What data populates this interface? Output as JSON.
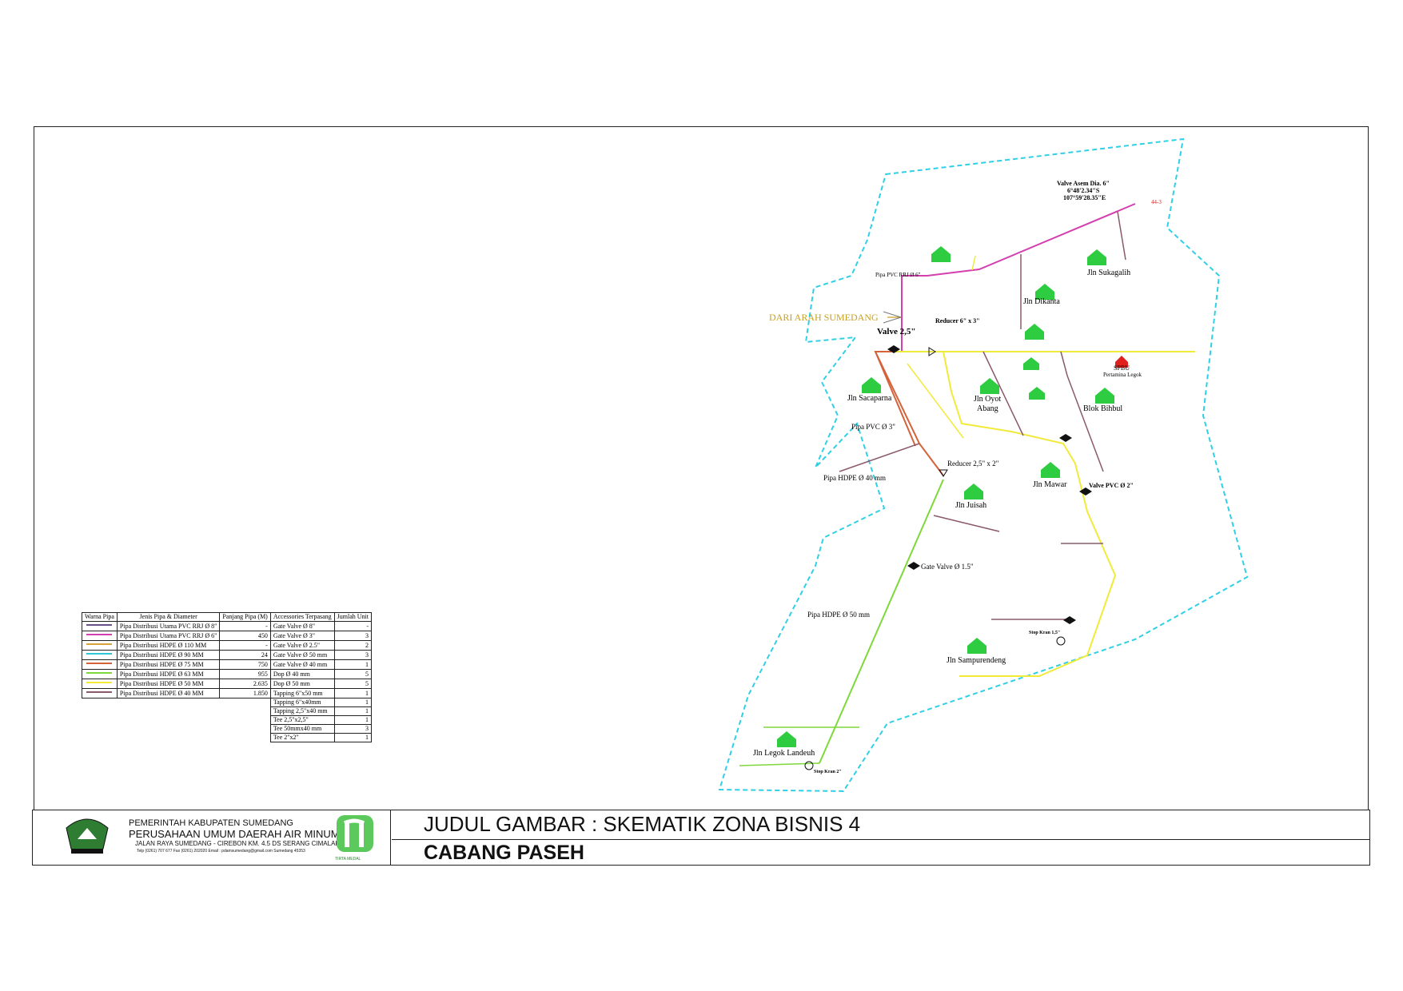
{
  "drawing": {
    "source_label": "DARI ARAH SUMEDANG",
    "valve_asem": {
      "title": "Valve Asem Dia. 6\"",
      "lat": "6°48'2.34\"S",
      "lon": "107°59'28.35\"E"
    },
    "labels": {
      "jln_sukagalih": "Jln Sukagalih",
      "jln_dikanta": "Jln Dikanta",
      "jln_sacaparna": "Jln Sacaparna",
      "jln_oyot_abang": "Jln Oyot\nAbang",
      "blok_bihbul": "Blok Bihbul",
      "jln_juisah": "Jln Juisah",
      "jln_mawar": "Jln Mawar",
      "jln_sampurendeng": "Jln Sampurendeng",
      "jln_legok_landeuh": "Jln Legok Landeuh",
      "spbu": "SPBU",
      "spbu_sub": "Pertamina Legok",
      "valve_25": "Valve 2,5\"",
      "reducer_6_3": "Reducer 6\" x 3\"",
      "reducer_25_2": "Reducer 2,5\" x  2\"",
      "pipa_pvc_rrj_6": "Pipa PVC RRJ Ø 6\"",
      "pipa_pvc_3": "Pipa PVC Ø 3\"",
      "pipa_hdpe_40": "Pipa HDPE Ø 40 mm",
      "pipa_hdpe_50": "Pipa HDPE Ø 50 mm",
      "gate_valve_15": "Gate Valve Ø 1.5\"",
      "valve_pvc_2": "Valve PVC Ø 2\"",
      "stop_kran_15": "Stop Kran 1,5\"",
      "stop_kran_2": "Stop Kran 2\"",
      "id_code": "44-3"
    }
  },
  "legend": {
    "headers": [
      "Warna Pipa",
      "Jenis Pipa & Diameter",
      "Panjang Pipa (M)",
      "Accessories Terpasang",
      "Jumlah Unit"
    ],
    "rows": [
      {
        "color": "#6a4f8a",
        "jenis": "Pipa Distribusi Utama PVC RRJ Ø 8\"",
        "panjang": "-",
        "acc": "Gate Valve Ø 8\"",
        "jumlah": "-"
      },
      {
        "color": "#d43fb0",
        "jenis": "Pipa Distribusi Utama PVC RRJ Ø 6\"",
        "panjang": "450",
        "acc": "Gate Valve Ø 3\"",
        "jumlah": "3"
      },
      {
        "color": "#d9a33a",
        "jenis": "Pipa Distribusi HDPE Ø 110 MM",
        "panjang": "-",
        "acc": "Gate Valve Ø 2.5\"",
        "jumlah": "2"
      },
      {
        "color": "#2fc6d6",
        "jenis": "Pipa Distribusi HDPE Ø 90 MM",
        "panjang": "24",
        "acc": "Gate Valve Ø 50 mm",
        "jumlah": "3"
      },
      {
        "color": "#d4623a",
        "jenis": "Pipa Distribusi HDPE Ø 75 MM",
        "panjang": "750",
        "acc": "Gate Valve Ø 40 mm",
        "jumlah": "1"
      },
      {
        "color": "#7fd83a",
        "jenis": "Pipa Distribusi HDPE Ø 63 MM",
        "panjang": "955",
        "acc": "Dop Ø 40 mm",
        "jumlah": "5"
      },
      {
        "color": "#f2ea3a",
        "jenis": "Pipa Distribusi HDPE Ø 50 MM",
        "panjang": "2.635",
        "acc": "Dop Ø 50 mm",
        "jumlah": "5"
      },
      {
        "color": "#8a5a6a",
        "jenis": "Pipa Distribusi HDPE Ø 40 MM",
        "panjang": "1.850",
        "acc": "Tapping 6\"x50 mm",
        "jumlah": "1"
      }
    ],
    "extra_rows": [
      {
        "acc": "Tapping 6\"x40mm",
        "jumlah": "1"
      },
      {
        "acc": "Tapping 2,5\"x40 mm",
        "jumlah": "1"
      },
      {
        "acc": "Tee 2,5\"x2,5\"",
        "jumlah": "1"
      },
      {
        "acc": "Tee 50mmx40 mm",
        "jumlah": "3"
      },
      {
        "acc": "Tee 2\"x2\"",
        "jumlah": "1"
      }
    ]
  },
  "titleblock": {
    "gov": "PEMERINTAH KABUPATEN SUMEDANG",
    "company": "PERUSAHAAN UMUM DAERAH AIR MINUM",
    "address": "JALAN RAYA SUMEDANG - CIREBON KM. 4.5 DS SERANG CIMALAKA",
    "contact": "Telp (0261) 707 677  Fax (0261) 202020  Email : pdamsumedang@gmail.com  Sumedang 45353",
    "brand": "TIRTA MEDAL",
    "judul": "JUDUL GAMBAR : SKEMATIK ZONA BISNIS 4",
    "cabang": "CABANG PASEH"
  },
  "colors": {
    "zone_boundary": "#2fd0e6",
    "house": "#2ecc40",
    "spbu": "#e0201c",
    "source": "#c9a020"
  }
}
